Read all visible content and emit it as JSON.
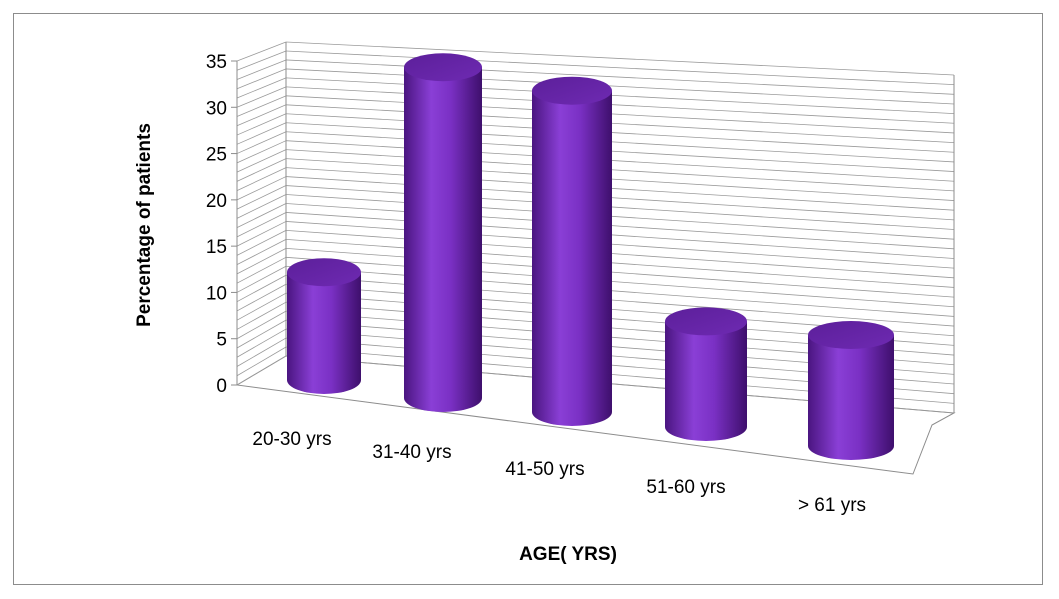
{
  "chart_data": {
    "type": "bar",
    "style": "3d-cylinder",
    "title": "",
    "xlabel": "AGE( YRS)",
    "ylabel": "Percentage of patients",
    "categories": [
      "20-30 yrs",
      "31-40 yrs",
      "41-50 yrs",
      "51-60 yrs",
      "> 61 yrs"
    ],
    "values": [
      11,
      35,
      34,
      11,
      12
    ],
    "ylim": [
      0,
      35
    ],
    "yticks": [
      "0",
      "5",
      "10",
      "15",
      "20",
      "25",
      "30",
      "35"
    ],
    "grid": true,
    "legend": "none",
    "bar_color": "#7a2fc0"
  }
}
